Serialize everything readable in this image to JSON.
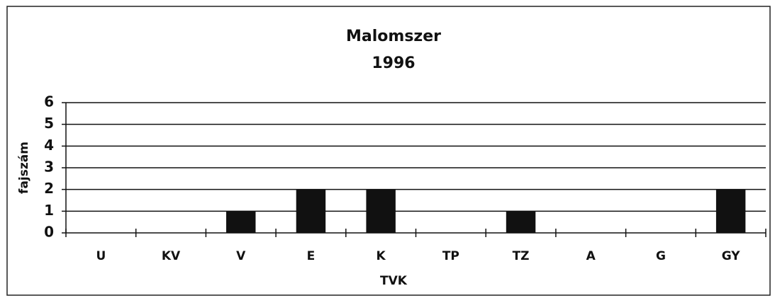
{
  "chart_data": {
    "type": "bar",
    "title": "Malomszer",
    "subtitle": "1996",
    "x_label": "TVK",
    "y_label": "fajszám",
    "categories": [
      "U",
      "KV",
      "V",
      "E",
      "K",
      "TP",
      "TZ",
      "A",
      "G",
      "GY"
    ],
    "values": [
      0,
      0,
      1,
      2,
      2,
      0,
      1,
      0,
      0,
      2
    ],
    "color": "#111111",
    "ylim": [
      0,
      6
    ],
    "yticks": [
      0,
      1,
      2,
      3,
      4,
      5,
      6
    ],
    "grid": true
  }
}
